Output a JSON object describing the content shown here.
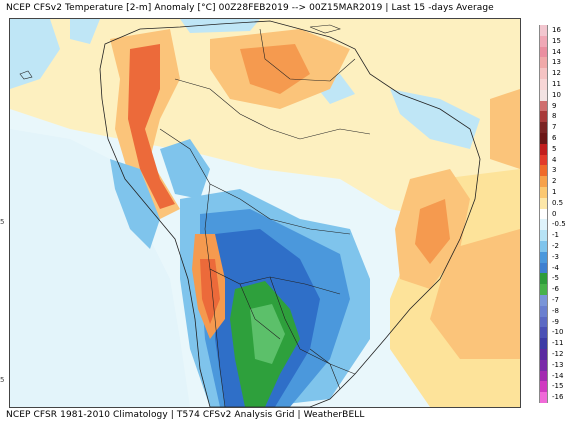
{
  "header": {
    "title": "NCEP CFSv2 Temperature [2-m] Anomaly [°C] 00Z28FEB2019 --> 00Z15MAR2019 | Last 15 -days Average"
  },
  "footer": {
    "credit": "NCEP CFSR 1981-2010 Climatology | T574 CFSv2 Analysis Grid | WeatherBELL"
  },
  "axis": {
    "left_tick_a": "5",
    "left_tick_b": "5"
  },
  "legend": {
    "labels": [
      "16",
      "15",
      "14",
      "13",
      "12",
      "11",
      "10",
      "9",
      "8",
      "7",
      "6",
      "5",
      "4",
      "3",
      "2",
      "1",
      "0.5",
      "0",
      "-0.5",
      "-1",
      "-2",
      "-3",
      "-4",
      "-5",
      "-6",
      "-7",
      "-8",
      "-9",
      "-10",
      "-11",
      "-12",
      "-13",
      "-14",
      "-15",
      "-16"
    ],
    "colors": [
      "#f2c6cf",
      "#f0a8b6",
      "#ea8fa0",
      "#f0a9a9",
      "#f5c3c3",
      "#f8d6d6",
      "#f2e3e3",
      "#cf6f6f",
      "#a83a3a",
      "#7a2323",
      "#6b1515",
      "#c11d1d",
      "#e23a2a",
      "#f06a2a",
      "#f7a14a",
      "#fbc871",
      "#fde7a8",
      "#ffffff",
      "#dff3fb",
      "#b7e3f5",
      "#7fc4ec",
      "#4b98dc",
      "#3e7fd0",
      "#2e9c3b",
      "#47b24a",
      "#7a95d8",
      "#6a7fcf",
      "#5b69c3",
      "#4a50b5",
      "#3c3ba5",
      "#5a2aa0",
      "#7a2aa8",
      "#a32ab0",
      "#d03ac0",
      "#f06ad8"
    ]
  },
  "map": {
    "colors": {
      "ocean_cool": "#e9f7fb",
      "light_blue": "#bfe6f6",
      "mid_blue": "#7fc4ec",
      "blue": "#4b98dc",
      "deep_blue": "#2f6fc8",
      "green": "#2ea03c",
      "light_green": "#5cc06a",
      "pale_yellow": "#fdf0c0",
      "yellow": "#fde39a",
      "light_orange": "#fbc47a",
      "orange": "#f59a4f",
      "red_orange": "#ec6a3a",
      "white": "#ffffff",
      "coast": "#222222"
    }
  }
}
